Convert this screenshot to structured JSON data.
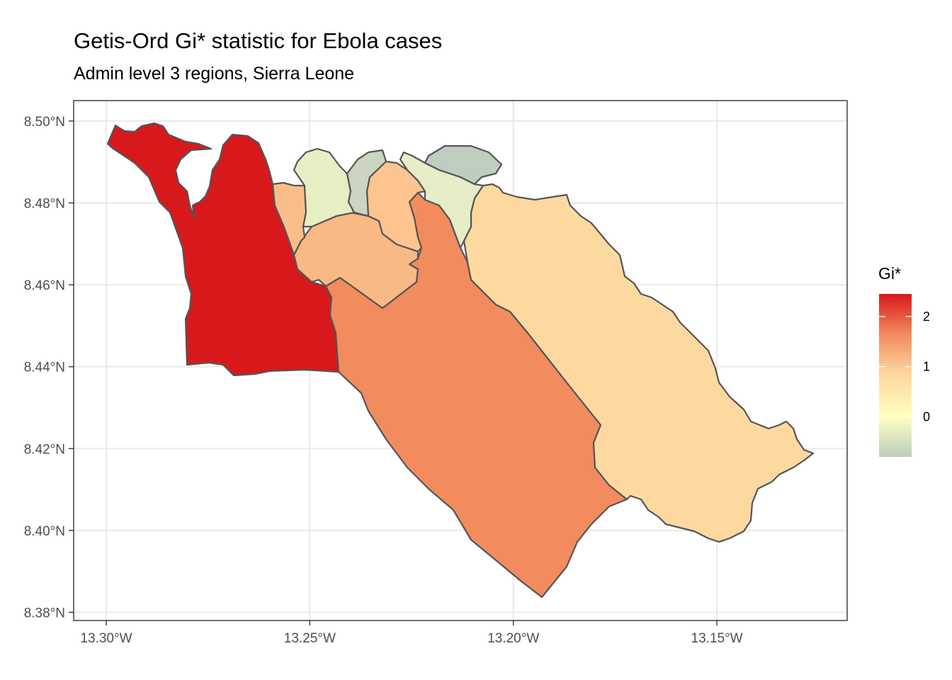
{
  "chart_data": {
    "type": "choropleth",
    "title": "Getis-Ord Gi* statistic for Ebola cases",
    "subtitle": "Admin level 3 regions, Sierra Leone",
    "x_ticks": [
      "13.30°W",
      "13.25°W",
      "13.20°W",
      "13.15°W"
    ],
    "y_ticks": [
      "8.50°N",
      "8.48°N",
      "8.46°N",
      "8.44°N",
      "8.42°N",
      "8.40°N",
      "8.38°N"
    ],
    "xlim": [
      -13.308,
      -13.118
    ],
    "ylim": [
      8.378,
      8.505
    ],
    "legend": {
      "title": "Gi*",
      "position": "right",
      "ticks": [
        "2",
        "1",
        "0"
      ],
      "range": [
        -0.8,
        2.45
      ],
      "colors": {
        "low": "#bfcdbf",
        "zero": "#ffffbf",
        "mid": "#fdd49e",
        "high": "#d7191c"
      }
    },
    "grid": true,
    "regions": [
      {
        "gi": 2.4,
        "color": "#d7191c"
      },
      {
        "gi": 1.5,
        "color": "#f28c5e"
      },
      {
        "gi": 0.75,
        "color": "#fdd9a0"
      },
      {
        "gi": 0.9,
        "color": "#f9b985"
      },
      {
        "gi": 1.0,
        "color": "#fdc48f"
      },
      {
        "gi": 0.95,
        "color": "#fbbd88"
      },
      {
        "gi": -0.2,
        "color": "#e7eec4"
      },
      {
        "gi": -0.25,
        "color": "#e6edc6"
      },
      {
        "gi": -0.6,
        "color": "#cbd5bf"
      },
      {
        "gi": -0.8,
        "color": "#bfcdbf"
      }
    ]
  }
}
